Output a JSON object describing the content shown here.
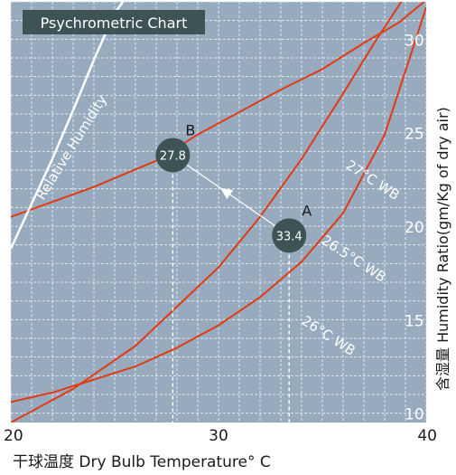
{
  "colors": {
    "plot_bg": "#97aabe",
    "grid": "#dfe6ee",
    "wb_curve": "#e23a12",
    "rh_curve": "#ffffff",
    "point_fill": "#3e5454",
    "title_bg": "#3e5454",
    "text_dark": "#1a1a1a",
    "text_light": "#ffffff"
  },
  "chart_data": {
    "type": "line",
    "title": "Psychrometric Chart",
    "xlabel": "干球温度 Dry Bulb Temperature°  C",
    "ylabel": "含湿量 Humidity Ratio(gm/Kg of dry air)",
    "xlim": [
      20,
      40
    ],
    "ylim": [
      9.5,
      32
    ],
    "x_ticks": [
      20,
      30,
      40
    ],
    "y_ticks": [
      10,
      15,
      20,
      25,
      30
    ],
    "x_tick_labels": [
      "20",
      "30",
      "40"
    ],
    "y_tick_labels": [
      "10",
      "15",
      "20",
      "25",
      "30"
    ],
    "grid": true,
    "series": [
      {
        "name": "27°C WB",
        "x": [
          20.0,
          24.0,
          27.0,
          29.0,
          31.0,
          33.0,
          35.0,
          37.0,
          38.7,
          39.9
        ],
        "y": [
          20.5,
          22.1,
          23.5,
          24.9,
          26.1,
          27.3,
          28.4,
          29.8,
          30.9,
          32.0
        ]
      },
      {
        "name": "26.5°C WB",
        "x": [
          20.0,
          22.0,
          24.0,
          26.0,
          28.0,
          30.0,
          32.0,
          34.0,
          36.0,
          38.0,
          40.0
        ],
        "y": [
          10.6,
          11.1,
          11.8,
          12.5,
          13.5,
          14.7,
          16.2,
          18.1,
          20.7,
          24.9,
          31.7
        ]
      },
      {
        "name": "26°C WB",
        "x": [
          20.0,
          23.0,
          26.0,
          28.0,
          30.0,
          32.0,
          34.0,
          36.0,
          37.5,
          38.8
        ],
        "y": [
          9.5,
          11.3,
          13.6,
          15.7,
          17.8,
          20.5,
          23.6,
          27.1,
          29.8,
          32.0
        ]
      }
    ],
    "relative_humidity_curve": {
      "name": "Relative Humidity",
      "x": [
        20.0,
        21.0,
        22.0,
        23.0,
        24.0,
        25.0,
        25.4
      ],
      "y": [
        18.8,
        21.2,
        23.6,
        26.2,
        28.9,
        31.4,
        32.0
      ]
    },
    "points": [
      {
        "label": "A",
        "value": "33.4",
        "x": 33.4,
        "y": 19.5
      },
      {
        "label": "B",
        "value": "27.8",
        "x": 27.8,
        "y": 23.8
      }
    ],
    "curve_labels": [
      "27°C WB",
      "26.5°C WB",
      "26°C WB",
      "Relative Humidity"
    ]
  }
}
